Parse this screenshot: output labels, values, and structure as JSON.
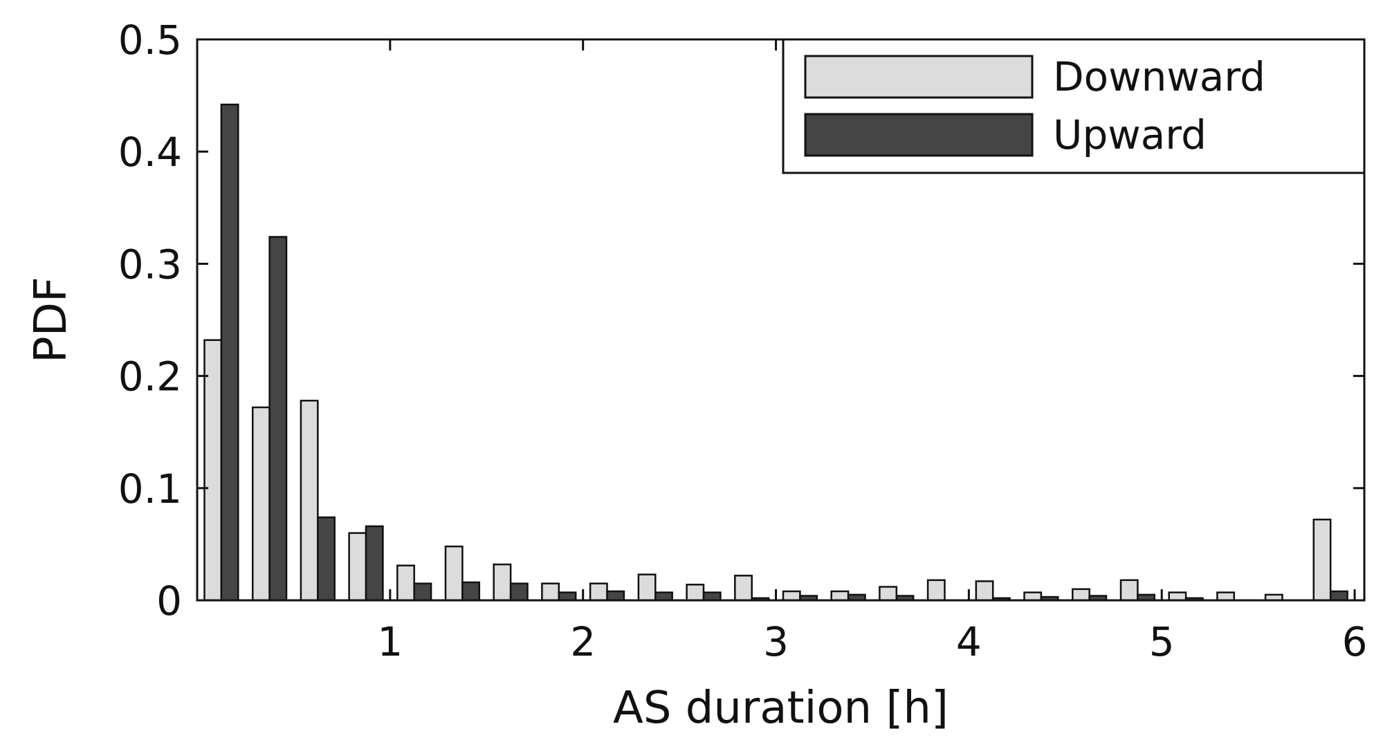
{
  "chart_data": {
    "type": "bar",
    "title": "",
    "xlabel": "AS duration [h]",
    "ylabel": "PDF",
    "xlim": [
      0,
      6.05
    ],
    "ylim": [
      0,
      0.5
    ],
    "xticks": [
      1,
      2,
      3,
      4,
      5,
      6
    ],
    "xtick_labels": [
      "1",
      "2",
      "3",
      "4",
      "5",
      "6"
    ],
    "yticks": [
      0,
      0.1,
      0.2,
      0.3,
      0.4,
      0.5
    ],
    "ytick_labels": [
      "0",
      "0.1",
      "0.2",
      "0.3",
      "0.4",
      "0.5"
    ],
    "grid": false,
    "legend_position": "top-right",
    "x": [
      0.125,
      0.375,
      0.625,
      0.875,
      1.125,
      1.375,
      1.625,
      1.875,
      2.125,
      2.375,
      2.625,
      2.875,
      3.125,
      3.375,
      3.625,
      3.875,
      4.125,
      4.375,
      4.625,
      4.875,
      5.125,
      5.375,
      5.625,
      5.875
    ],
    "series": [
      {
        "name": "Downward",
        "color": "#dcdcdc",
        "values": [
          0.232,
          0.172,
          0.178,
          0.06,
          0.031,
          0.048,
          0.032,
          0.015,
          0.015,
          0.023,
          0.014,
          0.022,
          0.008,
          0.008,
          0.012,
          0.018,
          0.017,
          0.007,
          0.01,
          0.018,
          0.007,
          0.007,
          0.005,
          0.072
        ]
      },
      {
        "name": "Upward",
        "color": "#454545",
        "values": [
          0.442,
          0.324,
          0.074,
          0.066,
          0.015,
          0.016,
          0.015,
          0.007,
          0.008,
          0.007,
          0.007,
          0.002,
          0.004,
          0.005,
          0.004,
          0.0,
          0.002,
          0.003,
          0.004,
          0.005,
          0.002,
          0.0,
          0.0,
          0.008
        ]
      }
    ]
  }
}
